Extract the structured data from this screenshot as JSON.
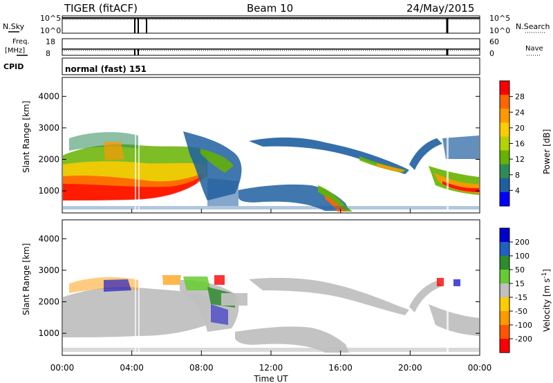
{
  "header": {
    "title": "TIGER (fitACF)",
    "beam": "Beam 10",
    "date": "24/May/2015"
  },
  "status_panels": {
    "nsky_label": "N.Sky",
    "nsky_ticks": [
      "10^5",
      "10^0"
    ],
    "nsearch_label": "N.Search",
    "nsearch_ticks": [
      "10^5",
      "10^0"
    ],
    "freq_label": "Freq.",
    "freq_unit": "[MHz]",
    "freq_ticks": [
      "18",
      "8"
    ],
    "nave_label": "Nave",
    "nave_ticks": [
      "60",
      "0"
    ],
    "cpid_label": "CPID",
    "cpid_text": "normal (fast) 151"
  },
  "chart_data": [
    {
      "type": "heatmap",
      "title": "",
      "xlabel": "Time UT",
      "ylabel": "Slant Range [km]",
      "x_ticks": [
        "00:00",
        "04:00",
        "08:00",
        "12:00",
        "16:00",
        "20:00",
        "00:00"
      ],
      "y_ticks": [
        "1000",
        "2000",
        "3000",
        "4000"
      ],
      "ylim": [
        300,
        4600
      ],
      "colorbar": {
        "label": "Power [dB]",
        "ticks": [
          "28",
          "24",
          "20",
          "16",
          "12",
          "8",
          "4"
        ],
        "colors": [
          "#ff0000",
          "#ff6600",
          "#ff9900",
          "#ffcc00",
          "#b4d200",
          "#66b200",
          "#2e8b57",
          "#1f5fa0",
          "#0000ff"
        ]
      },
      "echo_regions": [
        {
          "t": [
            0.0,
            7.5
          ],
          "range": [
            600,
            1500
          ],
          "power_db": 22
        },
        {
          "t": [
            0.5,
            6.5
          ],
          "range": [
            1500,
            2500
          ],
          "power_db": 12
        },
        {
          "t": [
            7.0,
            10.0
          ],
          "range": [
            1000,
            2800
          ],
          "power_db": 8
        },
        {
          "t": [
            10.5,
            16.5
          ],
          "range": [
            2000,
            2600
          ],
          "power_db": 6
        },
        {
          "t": [
            13.0,
            17.0
          ],
          "range": [
            300,
            1200
          ],
          "power_db": 14
        },
        {
          "t": [
            16.5,
            20.5
          ],
          "range": [
            1000,
            2000
          ],
          "power_db": 12
        },
        {
          "t": [
            21.0,
            24.0
          ],
          "range": [
            700,
            2400
          ],
          "power_db": 18
        }
      ]
    },
    {
      "type": "heatmap",
      "title": "",
      "xlabel": "Time UT",
      "ylabel": "Slant Range [km]",
      "x_ticks": [
        "00:00",
        "04:00",
        "08:00",
        "12:00",
        "16:00",
        "20:00",
        "00:00"
      ],
      "y_ticks": [
        "1000",
        "2000",
        "3000",
        "4000"
      ],
      "ylim": [
        300,
        4600
      ],
      "colorbar": {
        "label": "Velocity [m s",
        "label_sup": "-1",
        "label_end": "]",
        "ticks": [
          "200",
          "100",
          "50",
          "15",
          "-15",
          "-50",
          "-100",
          "-200"
        ],
        "colors": [
          "#0000cc",
          "#2060c0",
          "#2e8b2e",
          "#66cc33",
          "#c0c0c0",
          "#ffcc00",
          "#ff9900",
          "#ff5500",
          "#ff0000"
        ]
      },
      "echo_regions": [
        {
          "t": [
            0.0,
            7.5
          ],
          "range": [
            600,
            1600
          ],
          "velocity": 0
        },
        {
          "t": [
            7.5,
            10.0
          ],
          "range": [
            1000,
            2500
          ],
          "velocity": 50
        },
        {
          "t": [
            10.5,
            16.5
          ],
          "range": [
            1900,
            2600
          ],
          "velocity": 0
        },
        {
          "t": [
            11.0,
            17.0
          ],
          "range": [
            300,
            1200
          ],
          "velocity": -15
        },
        {
          "t": [
            16.5,
            20.5
          ],
          "range": [
            1000,
            2000
          ],
          "velocity": 0
        },
        {
          "t": [
            21.0,
            24.0
          ],
          "range": [
            700,
            2400
          ],
          "velocity": 0
        }
      ]
    }
  ]
}
